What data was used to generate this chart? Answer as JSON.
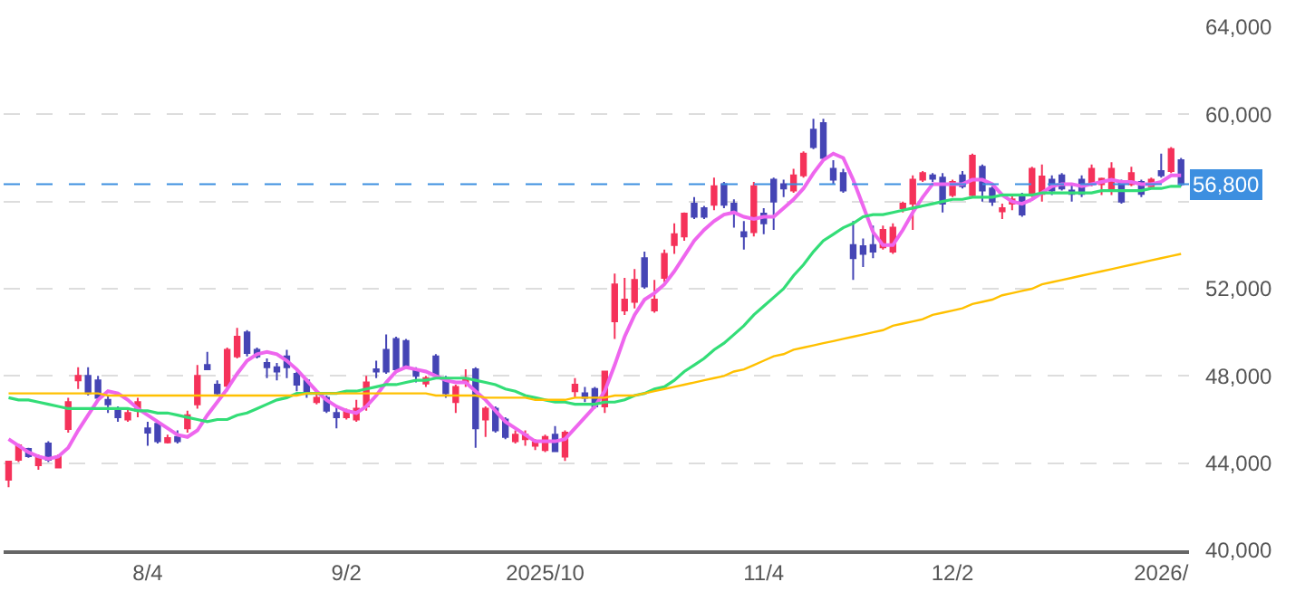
{
  "chart_data": {
    "type": "candlestick",
    "categories": [
      null,
      null,
      null,
      null,
      null,
      null,
      null,
      null,
      null,
      null,
      null,
      null,
      null,
      null,
      "8/4",
      null,
      null,
      null,
      null,
      null,
      null,
      null,
      null,
      null,
      null,
      null,
      null,
      null,
      null,
      null,
      null,
      null,
      null,
      null,
      "9/2",
      null,
      null,
      null,
      null,
      null,
      null,
      null,
      null,
      null,
      null,
      null,
      null,
      null,
      null,
      null,
      null,
      null,
      null,
      null,
      "2025/10",
      null,
      null,
      null,
      null,
      null,
      null,
      null,
      null,
      null,
      null,
      null,
      null,
      null,
      null,
      null,
      null,
      null,
      null,
      null,
      null,
      null,
      "11/4",
      null,
      null,
      null,
      null,
      null,
      null,
      null,
      null,
      null,
      null,
      null,
      null,
      null,
      null,
      null,
      null,
      null,
      null,
      "12/2",
      null,
      null,
      null,
      null,
      null,
      null,
      null,
      null,
      null,
      null,
      null,
      null,
      null,
      null,
      null,
      null,
      null,
      null,
      null,
      null,
      "2026/",
      null,
      null
    ],
    "ohlc": [
      [
        43240,
        44100,
        42900,
        44070
      ],
      [
        44150,
        44900,
        44050,
        44820
      ],
      [
        44650,
        44700,
        44250,
        44320
      ],
      [
        43900,
        44400,
        43700,
        44300
      ],
      [
        44900,
        45000,
        44050,
        44150
      ],
      [
        43800,
        44400,
        43800,
        44300
      ],
      [
        45560,
        47000,
        45400,
        46800
      ],
      [
        47800,
        48400,
        47400,
        48000
      ],
      [
        48000,
        48400,
        47100,
        47200
      ],
      [
        47800,
        48000,
        46900,
        47000
      ],
      [
        46900,
        47100,
        46300,
        46700
      ],
      [
        46500,
        46600,
        45900,
        46100
      ],
      [
        46000,
        46500,
        45900,
        46300
      ],
      [
        46400,
        47000,
        46100,
        46800
      ],
      [
        45600,
        45900,
        44800,
        45400
      ],
      [
        45800,
        45900,
        44900,
        45000
      ],
      [
        44950,
        45300,
        44900,
        45150
      ],
      [
        45200,
        45500,
        44900,
        45000
      ],
      [
        45600,
        46400,
        45400,
        46200
      ],
      [
        46700,
        48500,
        46500,
        48000
      ],
      [
        48500,
        49100,
        48300,
        48300
      ],
      [
        47600,
        47800,
        47100,
        47200
      ],
      [
        47550,
        49300,
        47300,
        49200
      ],
      [
        48900,
        50200,
        48800,
        49800
      ],
      [
        50000,
        50100,
        48900,
        49050
      ],
      [
        49200,
        49300,
        48800,
        48900
      ],
      [
        48600,
        48800,
        47900,
        48400
      ],
      [
        48400,
        48600,
        47800,
        48200
      ],
      [
        48900,
        49200,
        47900,
        48400
      ],
      [
        48100,
        48200,
        47300,
        47600
      ],
      [
        47800,
        47900,
        47000,
        47200
      ],
      [
        46800,
        47300,
        46700,
        47000
      ],
      [
        47000,
        47100,
        46300,
        46400
      ],
      [
        46300,
        46600,
        45600,
        46100
      ],
      [
        46100,
        46500,
        46000,
        46400
      ],
      [
        46000,
        46900,
        45900,
        46500
      ],
      [
        46600,
        48000,
        46400,
        47700
      ],
      [
        48300,
        48700,
        47900,
        48200
      ],
      [
        49200,
        49900,
        48100,
        48200
      ],
      [
        49700,
        49800,
        48200,
        48300
      ],
      [
        49600,
        49700,
        48300,
        48400
      ],
      [
        48300,
        48400,
        47700,
        48000
      ],
      [
        47650,
        48000,
        47500,
        47900
      ],
      [
        48900,
        49000,
        47900,
        48000
      ],
      [
        47900,
        48000,
        47000,
        47200
      ],
      [
        46800,
        47600,
        46300,
        47500
      ],
      [
        47700,
        48300,
        47500,
        47900
      ],
      [
        48300,
        48400,
        44700,
        45600
      ],
      [
        46000,
        46600,
        45200,
        46500
      ],
      [
        46500,
        46600,
        45400,
        45500
      ],
      [
        46000,
        46100,
        45100,
        45200
      ],
      [
        45000,
        45500,
        44900,
        45300
      ],
      [
        45100,
        45500,
        44800,
        45300
      ],
      [
        44800,
        45100,
        44600,
        44950
      ],
      [
        44600,
        45300,
        44500,
        45200
      ],
      [
        45300,
        45700,
        44500,
        44550
      ],
      [
        44300,
        45500,
        44100,
        45400
      ],
      [
        47300,
        47900,
        47000,
        47600
      ],
      [
        47200,
        47500,
        46800,
        47000
      ],
      [
        47400,
        47500,
        46500,
        46600
      ],
      [
        46600,
        48200,
        46300,
        48200
      ],
      [
        50500,
        52700,
        49700,
        52200
      ],
      [
        51000,
        52500,
        50800,
        51500
      ],
      [
        51400,
        52900,
        51100,
        52400
      ],
      [
        53400,
        53700,
        52000,
        52100
      ],
      [
        51000,
        52400,
        50900,
        51500
      ],
      [
        52500,
        53800,
        52300,
        53600
      ],
      [
        54000,
        55000,
        53600,
        54500
      ],
      [
        54400,
        55500,
        54200,
        55450
      ],
      [
        55900,
        56200,
        55200,
        55300
      ],
      [
        55700,
        55800,
        55200,
        55300
      ],
      [
        55850,
        57100,
        55600,
        56700
      ],
      [
        56800,
        56900,
        55700,
        55850
      ],
      [
        55900,
        56100,
        54800,
        55450
      ],
      [
        54600,
        55100,
        53800,
        54400
      ],
      [
        54600,
        56900,
        54400,
        56700
      ],
      [
        55450,
        55700,
        54500,
        55000
      ],
      [
        57000,
        57100,
        54700,
        56000
      ],
      [
        56800,
        57000,
        56200,
        56600
      ],
      [
        56500,
        57500,
        56400,
        57200
      ],
      [
        57200,
        58300,
        57100,
        58200
      ],
      [
        59300,
        59800,
        58400,
        58500
      ],
      [
        59600,
        59800,
        57900,
        58000
      ],
      [
        57500,
        57900,
        56800,
        57000
      ],
      [
        57300,
        57500,
        56400,
        56500
      ],
      [
        54000,
        55100,
        52400,
        53400
      ],
      [
        53950,
        54300,
        53000,
        53600
      ],
      [
        54000,
        54900,
        53400,
        53700
      ],
      [
        53900,
        54900,
        53800,
        54700
      ],
      [
        53700,
        55000,
        53600,
        54800
      ],
      [
        55700,
        56000,
        55500,
        55900
      ],
      [
        55900,
        57200,
        54700,
        57000
      ],
      [
        57000,
        57400,
        56900,
        57300
      ],
      [
        57200,
        57300,
        56900,
        57050
      ],
      [
        57100,
        57300,
        55500,
        55900
      ],
      [
        56300,
        57000,
        56200,
        56900
      ],
      [
        57200,
        57400,
        56600,
        56700
      ],
      [
        56300,
        58200,
        56200,
        58100
      ],
      [
        57600,
        57700,
        56000,
        56500
      ],
      [
        56600,
        56700,
        55800,
        56000
      ],
      [
        55550,
        55900,
        55200,
        55700
      ],
      [
        55900,
        56300,
        55600,
        56100
      ],
      [
        56300,
        56400,
        55300,
        55400
      ],
      [
        56300,
        57600,
        56200,
        57500
      ],
      [
        56350,
        57700,
        56000,
        57150
      ],
      [
        57000,
        57200,
        56300,
        56500
      ],
      [
        57200,
        57300,
        56500,
        56600
      ],
      [
        56500,
        56800,
        56000,
        56350
      ],
      [
        57000,
        57200,
        56200,
        56350
      ],
      [
        56800,
        57700,
        56700,
        57500
      ],
      [
        56800,
        57100,
        56300,
        57050
      ],
      [
        56500,
        57800,
        56300,
        57500
      ],
      [
        56900,
        57000,
        55900,
        56000
      ],
      [
        56800,
        57600,
        56700,
        57300
      ],
      [
        56900,
        57000,
        56200,
        56350
      ],
      [
        56700,
        57100,
        56600,
        57000
      ],
      [
        57400,
        58200,
        57100,
        57200
      ],
      [
        57400,
        58500,
        57300,
        58400
      ],
      [
        57900,
        58000,
        56700,
        56800
      ]
    ],
    "colors": [
      "#f5325a",
      "#f5325a",
      "#4545b5",
      "#f5325a",
      "#4545b5",
      "#f5325a",
      "#f5325a",
      "#f5325a",
      "#4545b5",
      "#4545b5",
      "#4545b5",
      "#4545b5",
      "#f5325a",
      "#f5325a",
      "#4545b5",
      "#4545b5",
      "#f5325a",
      "#4545b5",
      "#f5325a",
      "#f5325a",
      "#4545b5",
      "#4545b5",
      "#f5325a",
      "#f5325a",
      "#4545b5",
      "#4545b5",
      "#4545b5",
      "#4545b5",
      "#4545b5",
      "#4545b5",
      "#4545b5",
      "#f5325a",
      "#4545b5",
      "#4545b5",
      "#f5325a",
      "#f5325a",
      "#f5325a",
      "#4545b5",
      "#4545b5",
      "#4545b5",
      "#4545b5",
      "#4545b5",
      "#f5325a",
      "#4545b5",
      "#4545b5",
      "#f5325a",
      "#f5325a",
      "#4545b5",
      "#f5325a",
      "#4545b5",
      "#4545b5",
      "#f5325a",
      "#f5325a",
      "#f5325a",
      "#f5325a",
      "#4545b5",
      "#f5325a",
      "#f5325a",
      "#4545b5",
      "#4545b5",
      "#f5325a",
      "#f5325a",
      "#f5325a",
      "#f5325a",
      "#4545b5",
      "#f5325a",
      "#f5325a",
      "#f5325a",
      "#f5325a",
      "#4545b5",
      "#4545b5",
      "#f5325a",
      "#4545b5",
      "#4545b5",
      "#4545b5",
      "#f5325a",
      "#4545b5",
      "#4545b5",
      "#4545b5",
      "#f5325a",
      "#f5325a",
      "#4545b5",
      "#4545b5",
      "#4545b5",
      "#4545b5",
      "#4545b5",
      "#4545b5",
      "#4545b5",
      "#f5325a",
      "#f5325a",
      "#f5325a",
      "#f5325a",
      "#f5325a",
      "#4545b5",
      "#4545b5",
      "#f5325a",
      "#4545b5",
      "#f5325a",
      "#4545b5",
      "#4545b5",
      "#f5325a",
      "#f5325a",
      "#4545b5",
      "#f5325a",
      "#f5325a",
      "#4545b5",
      "#4545b5",
      "#4545b5",
      "#4545b5",
      "#f5325a",
      "#f5325a",
      "#f5325a",
      "#4545b5",
      "#f5325a",
      "#4545b5",
      "#f5325a",
      "#4545b5",
      "#f5325a",
      "#4545b5"
    ],
    "series": [
      {
        "type": "line",
        "color": "#ee66ee",
        "values": [
          45100,
          44800,
          44500,
          44300,
          44200,
          44300,
          44700,
          45500,
          46200,
          46900,
          47300,
          47200,
          46900,
          46500,
          46200,
          45900,
          45600,
          45300,
          45200,
          45500,
          46200,
          46800,
          47400,
          48100,
          48700,
          49000,
          49100,
          49000,
          48700,
          48300,
          47800,
          47300,
          46900,
          46600,
          46400,
          46300,
          46600,
          47100,
          47700,
          48200,
          48400,
          48300,
          48200,
          48000,
          47800,
          47700,
          47700,
          47300,
          46900,
          46400,
          45900,
          45600,
          45300,
          45000,
          45000,
          45000,
          45100,
          45600,
          46100,
          46600,
          47300,
          48500,
          49800,
          50800,
          51500,
          51800,
          52200,
          52800,
          53500,
          54200,
          54700,
          55100,
          55400,
          55500,
          55300,
          55200,
          55300,
          55300,
          55700,
          56100,
          56600,
          57300,
          57900,
          58200,
          58000,
          57000,
          55800,
          54600,
          54000,
          54000,
          54700,
          55500,
          56200,
          56800,
          56800,
          56800,
          56800,
          57000,
          57000,
          56800,
          56300,
          56000,
          55900,
          56100,
          56400,
          56700,
          56800,
          56800,
          56700,
          56800,
          56900,
          57000,
          56900,
          56900,
          56800,
          56800,
          56900,
          57200,
          57200
        ]
      },
      {
        "type": "line",
        "color": "#33dd77",
        "values": [
          47000,
          46900,
          46900,
          46800,
          46700,
          46600,
          46500,
          46500,
          46500,
          46500,
          46500,
          46500,
          46500,
          46400,
          46400,
          46300,
          46300,
          46200,
          46100,
          46000,
          45900,
          46000,
          46000,
          46200,
          46300,
          46500,
          46700,
          46900,
          47000,
          47200,
          47200,
          47200,
          47200,
          47200,
          47300,
          47300,
          47400,
          47500,
          47600,
          47600,
          47700,
          47800,
          47800,
          47900,
          47900,
          47900,
          47900,
          47800,
          47700,
          47600,
          47400,
          47300,
          47100,
          47000,
          46900,
          46800,
          46800,
          46700,
          46700,
          46700,
          46800,
          46800,
          46900,
          47100,
          47200,
          47400,
          47500,
          47800,
          48200,
          48500,
          48800,
          49200,
          49500,
          49900,
          50300,
          50800,
          51200,
          51600,
          52000,
          52600,
          53100,
          53700,
          54200,
          54500,
          54800,
          55000,
          55300,
          55400,
          55400,
          55500,
          55600,
          55700,
          55800,
          55900,
          56000,
          56100,
          56100,
          56200,
          56200,
          56200,
          56300,
          56300,
          56300,
          56300,
          56400,
          56400,
          56400,
          56400,
          56400,
          56400,
          56500,
          56500,
          56500,
          56500,
          56500,
          56600,
          56600,
          56700,
          56700
        ]
      },
      {
        "type": "line",
        "color": "#ffc000",
        "values": [
          47200,
          47200,
          47200,
          47200,
          47200,
          47200,
          47200,
          47200,
          47200,
          47200,
          47100,
          47100,
          47100,
          47100,
          47100,
          47100,
          47100,
          47100,
          47100,
          47100,
          47100,
          47100,
          47100,
          47100,
          47100,
          47100,
          47100,
          47100,
          47100,
          47100,
          47200,
          47200,
          47200,
          47200,
          47200,
          47200,
          47200,
          47200,
          47200,
          47200,
          47200,
          47200,
          47200,
          47100,
          47100,
          47100,
          47100,
          47100,
          47000,
          47000,
          47000,
          47000,
          47000,
          46900,
          46900,
          46900,
          46900,
          47000,
          47000,
          47000,
          47000,
          47100,
          47100,
          47100,
          47200,
          47300,
          47400,
          47500,
          47600,
          47700,
          47800,
          47900,
          48000,
          48200,
          48300,
          48500,
          48700,
          48900,
          49000,
          49200,
          49300,
          49400,
          49500,
          49600,
          49700,
          49800,
          49900,
          50000,
          50100,
          50300,
          50400,
          50500,
          50600,
          50800,
          50900,
          51000,
          51100,
          51300,
          51400,
          51500,
          51700,
          51800,
          51900,
          52000,
          52200,
          52300,
          52400,
          52500,
          52600,
          52700,
          52800,
          52900,
          53000,
          53100,
          53200,
          53300,
          53400,
          53500,
          53600
        ]
      }
    ],
    "ylim": [
      40000,
      64000
    ],
    "yticks": [
      {
        "value": 40000,
        "label": "40,000"
      },
      {
        "value": 44000,
        "label": "44,000"
      },
      {
        "value": 48000,
        "label": "48,000"
      },
      {
        "value": 52000,
        "label": "52,000"
      },
      {
        "value": 56000,
        "label": null
      },
      {
        "value": 60000,
        "label": "60,000"
      },
      {
        "value": 64000,
        "label": "64,000"
      }
    ],
    "ref_lines": [
      {
        "axis": "y",
        "value": 56800,
        "label": "56,800",
        "color": "#3d8fe0",
        "line_style": "dashed"
      }
    ],
    "grid": "y",
    "marker": "none",
    "line_style": "solid"
  }
}
